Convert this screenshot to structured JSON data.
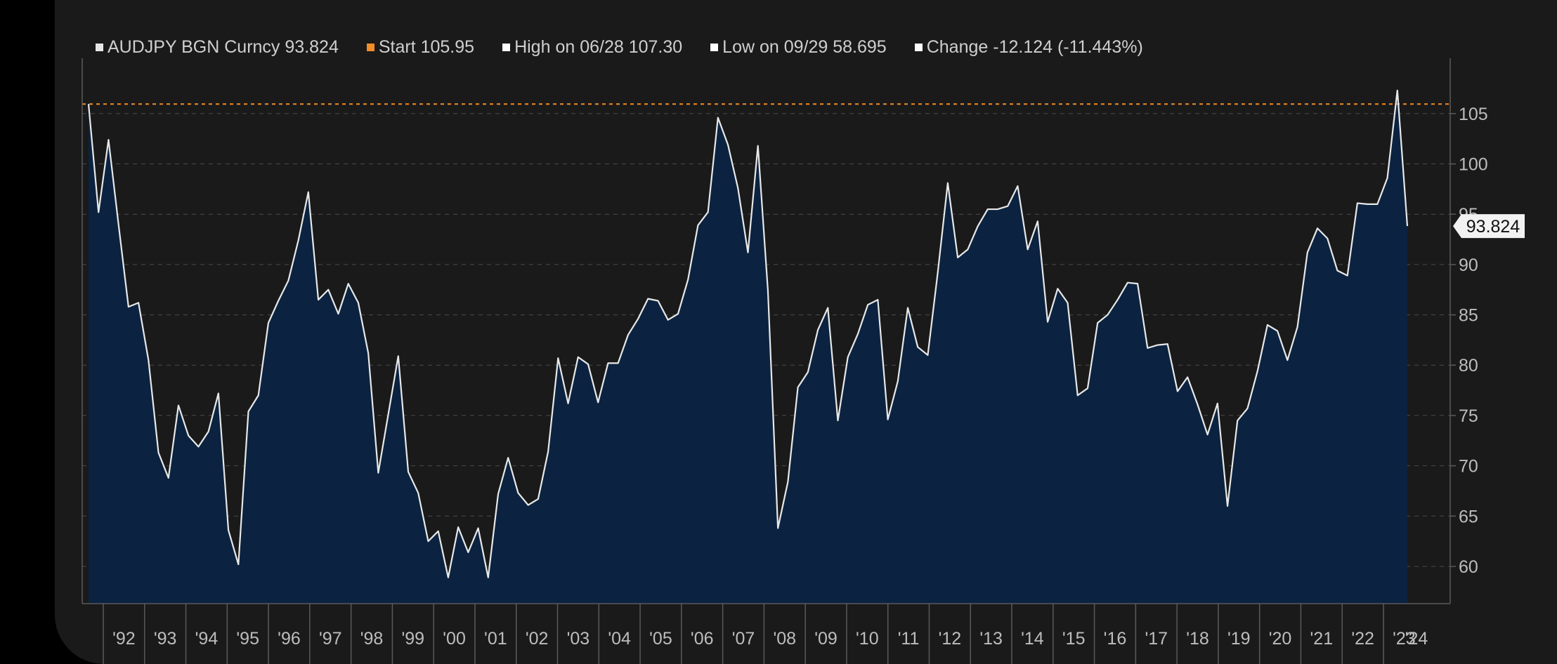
{
  "legend": [
    {
      "label": "AUDJPY BGN Curncy 93.824",
      "color": "#e6e6e6"
    },
    {
      "label": "Start 105.95",
      "color": "#f28c28"
    },
    {
      "label": "High on 06/28 107.30",
      "color": "#ffffff"
    },
    {
      "label": "Low on 09/29 58.695",
      "color": "#ffffff"
    },
    {
      "label": "Change -12.124 (-11.443%)",
      "color": "#ffffff"
    }
  ],
  "colors": {
    "line": "#e8e8e8",
    "area": "#0b2340",
    "reference": "#f28c28",
    "grid": "#4a4a4a",
    "axis": "#5a5a5a",
    "text": "#bdbdbd",
    "last_label_bg": "#f2f2f2",
    "last_label_text": "#111111"
  },
  "chart_data": {
    "type": "area",
    "title": "",
    "series": [
      {
        "name": "AUDJPY BGN Curncy",
        "frequency": "quarterly",
        "start": "1991-06",
        "values": [
          105.95,
          95.2,
          102.4,
          94.0,
          85.8,
          86.2,
          80.5,
          71.3,
          68.8,
          76.0,
          73.0,
          71.9,
          73.4,
          77.2,
          63.6,
          60.2,
          75.4,
          77.0,
          84.2,
          86.4,
          88.4,
          92.4,
          97.2,
          86.5,
          87.5,
          85.1,
          88.1,
          86.2,
          81.2,
          69.3,
          75.1,
          80.9,
          69.4,
          67.3,
          62.5,
          63.5,
          58.9,
          63.9,
          61.4,
          63.8,
          58.9,
          67.2,
          70.8,
          67.3,
          66.1,
          66.7,
          71.4,
          80.7,
          76.2,
          80.8,
          80.1,
          76.3,
          80.2,
          80.2,
          83.0,
          84.6,
          86.6,
          86.4,
          84.5,
          85.1,
          88.5,
          93.9,
          95.2,
          104.6,
          101.9,
          97.6,
          91.2,
          101.8,
          87.4,
          63.8,
          68.4,
          77.8,
          79.3,
          83.5,
          85.7,
          74.5,
          80.8,
          83.1,
          86.0,
          86.5,
          74.6,
          78.4,
          85.7,
          81.8,
          81.0,
          89.2,
          98.1,
          90.7,
          91.5,
          93.8,
          95.5,
          95.5,
          95.8,
          97.8,
          91.5,
          94.3,
          84.3,
          87.6,
          86.2,
          77.0,
          77.7,
          84.2,
          85.0,
          86.5,
          88.2,
          88.1,
          81.7,
          82.0,
          82.1,
          77.4,
          78.8,
          76.1,
          73.1,
          76.2,
          66.0,
          74.5,
          75.7,
          79.4,
          84.0,
          83.4,
          80.5,
          83.8,
          91.2,
          93.6,
          92.6,
          89.4,
          88.9,
          96.1,
          96.0,
          96.0,
          98.6,
          107.3,
          93.824
        ]
      }
    ],
    "ylim": [
      56.3,
      110.5
    ],
    "yticks": [
      60,
      65,
      70,
      75,
      80,
      85,
      90,
      95,
      100,
      105
    ],
    "xtick_labels": [
      "'92",
      "'93",
      "'94",
      "'95",
      "'96",
      "'97",
      "'98",
      "'99",
      "'00",
      "'01",
      "'02",
      "'03",
      "'04",
      "'05",
      "'06",
      "'07",
      "'08",
      "'09",
      "'10",
      "'11",
      "'12",
      "'13",
      "'14",
      "'15",
      "'16",
      "'17",
      "'18",
      "'19",
      "'20",
      "'21",
      "'22",
      "'23",
      "'24"
    ],
    "reference_line": {
      "name": "Start",
      "value": 105.95
    },
    "last_value_label": "93.824",
    "grid": true,
    "legend_position": "top-left",
    "y_axis_side": "right"
  }
}
